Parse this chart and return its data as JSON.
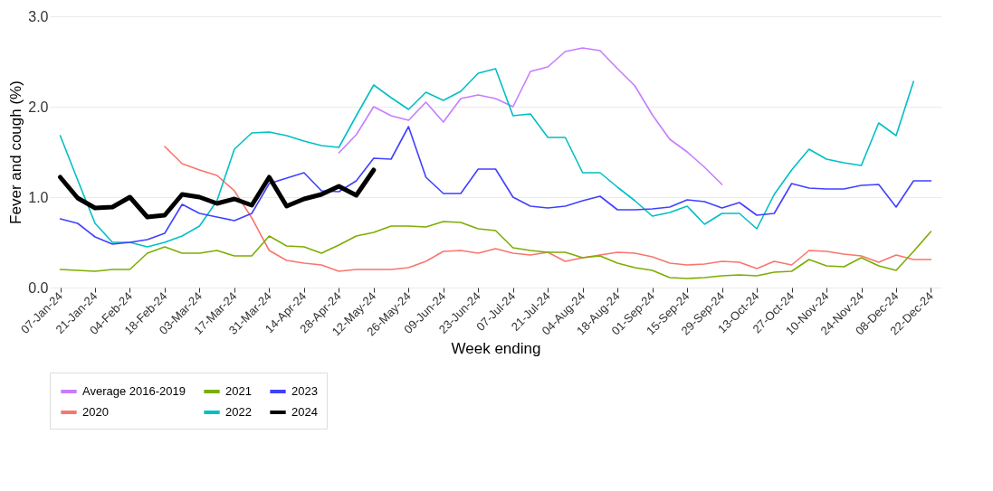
{
  "chart_data": {
    "type": "line",
    "xlabel": "Week ending",
    "ylabel": "Fever and cough (%)",
    "categories": [
      "07-Jan-24",
      null,
      "21-Jan-24",
      null,
      "04-Feb-24",
      null,
      "18-Feb-24",
      null,
      "03-Mar-24",
      null,
      "17-Mar-24",
      null,
      "31-Mar-24",
      null,
      "14-Apr-24",
      null,
      "28-Apr-24",
      null,
      "12-May-24",
      null,
      "26-May-24",
      null,
      "09-Jun-24",
      null,
      "23-Jun-24",
      null,
      "07-Jul-24",
      null,
      "21-Jul-24",
      null,
      "04-Aug-24",
      null,
      "18-Aug-24",
      null,
      "01-Sep-24",
      null,
      "15-Sep-24",
      null,
      "29-Sep-24",
      null,
      "13-Oct-24",
      null,
      "27-Oct-24",
      null,
      "10-Nov-24",
      null,
      "24-Nov-24",
      null,
      "08-Dec-24",
      null,
      "22-Dec-24"
    ],
    "ylim": [
      0,
      3
    ],
    "yticks": [
      {
        "value": 0,
        "label": "0.0"
      },
      {
        "value": 1,
        "label": "1.0"
      },
      {
        "value": 2,
        "label": "2.0"
      },
      {
        "value": 3,
        "label": "3.0"
      }
    ],
    "grid": "y",
    "legend": "bottom",
    "series": [
      {
        "name": "Average 2016-2019",
        "color": "#c77cff",
        "values": [
          null,
          null,
          null,
          null,
          null,
          null,
          null,
          null,
          null,
          null,
          null,
          null,
          null,
          null,
          null,
          null,
          1.49,
          1.69,
          2.0,
          1.9,
          1.85,
          2.05,
          1.83,
          2.09,
          2.13,
          2.09,
          2.0,
          2.39,
          2.44,
          2.61,
          2.65,
          2.62,
          2.42,
          2.23,
          1.91,
          1.64,
          1.5,
          1.33,
          1.14,
          null,
          null,
          null,
          null,
          null,
          null,
          null,
          null,
          null,
          null,
          null,
          null
        ]
      },
      {
        "name": "2020",
        "color": "#f8766d",
        "values": [
          null,
          null,
          null,
          null,
          null,
          null,
          1.56,
          1.37,
          1.3,
          1.24,
          1.07,
          0.77,
          0.41,
          0.3,
          0.27,
          0.25,
          0.18,
          0.2,
          0.2,
          0.2,
          0.22,
          0.29,
          0.4,
          0.41,
          0.38,
          0.43,
          0.38,
          0.36,
          0.39,
          0.29,
          0.33,
          0.36,
          0.39,
          0.38,
          0.34,
          0.27,
          0.25,
          0.26,
          0.29,
          0.28,
          0.21,
          0.29,
          0.25,
          0.41,
          0.4,
          0.37,
          0.35,
          0.28,
          0.36,
          0.31,
          0.31
        ]
      },
      {
        "name": "2021",
        "color": "#7cae00",
        "values": [
          0.2,
          0.19,
          0.18,
          0.2,
          0.2,
          0.38,
          0.45,
          0.38,
          0.38,
          0.41,
          0.35,
          0.35,
          0.57,
          0.46,
          0.45,
          0.38,
          0.47,
          0.57,
          0.61,
          0.68,
          0.68,
          0.67,
          0.73,
          0.72,
          0.65,
          0.63,
          0.44,
          0.41,
          0.39,
          0.39,
          0.33,
          0.35,
          0.27,
          0.22,
          0.19,
          0.11,
          0.1,
          0.11,
          0.13,
          0.14,
          0.13,
          0.17,
          0.18,
          0.31,
          0.24,
          0.23,
          0.33,
          0.24,
          0.19,
          0.4,
          0.62
        ]
      },
      {
        "name": "2022",
        "color": "#00bfc4",
        "values": [
          1.68,
          1.19,
          0.71,
          0.5,
          0.5,
          0.45,
          0.5,
          0.57,
          0.68,
          0.96,
          1.53,
          1.71,
          1.72,
          1.68,
          1.62,
          1.57,
          1.55,
          1.9,
          2.24,
          2.1,
          1.97,
          2.16,
          2.07,
          2.17,
          2.37,
          2.42,
          1.9,
          1.92,
          1.66,
          1.66,
          1.27,
          1.27,
          1.11,
          0.96,
          0.79,
          0.83,
          0.9,
          0.7,
          0.82,
          0.82,
          0.65,
          1.03,
          1.3,
          1.53,
          1.42,
          1.38,
          1.35,
          1.82,
          1.68,
          2.28,
          null
        ]
      },
      {
        "name": "2023",
        "color": "#4040ff",
        "values": [
          0.76,
          0.71,
          0.56,
          0.48,
          0.5,
          0.53,
          0.6,
          0.92,
          0.82,
          0.78,
          0.74,
          0.82,
          1.15,
          1.21,
          1.27,
          1.07,
          1.06,
          1.18,
          1.43,
          1.42,
          1.78,
          1.22,
          1.04,
          1.04,
          1.31,
          1.31,
          1.0,
          0.9,
          0.88,
          0.9,
          0.96,
          1.01,
          0.86,
          0.86,
          0.87,
          0.89,
          0.97,
          0.95,
          0.88,
          0.94,
          0.8,
          0.82,
          1.15,
          1.1,
          1.09,
          1.09,
          1.13,
          1.14,
          0.89,
          1.18,
          1.18
        ]
      },
      {
        "name": "2024",
        "color": "#000000",
        "values": [
          1.22,
          0.99,
          0.88,
          0.89,
          1.0,
          0.78,
          0.8,
          1.03,
          1.0,
          0.93,
          0.98,
          0.91,
          1.22,
          0.9,
          0.98,
          1.03,
          1.12,
          1.02,
          1.3,
          null,
          null,
          null,
          null,
          null,
          null,
          null,
          null,
          null,
          null,
          null,
          null,
          null,
          null,
          null,
          null,
          null,
          null,
          null,
          null,
          null,
          null,
          null,
          null,
          null,
          null,
          null,
          null,
          null,
          null,
          null,
          null
        ]
      }
    ]
  }
}
